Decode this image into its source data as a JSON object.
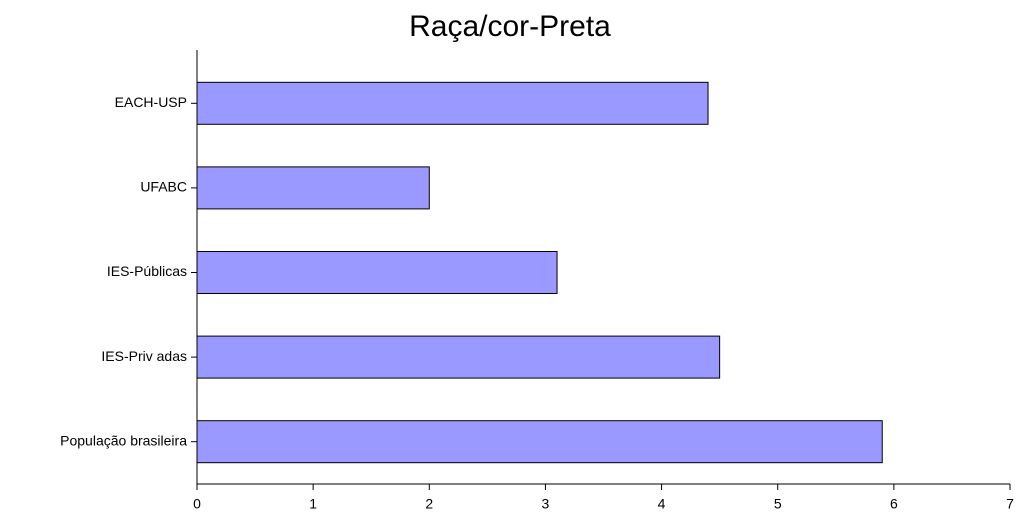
{
  "chart_data": {
    "type": "bar",
    "orientation": "horizontal",
    "title": "Raça/cor-Preta",
    "categories": [
      "EACH-USP",
      "UFABC",
      "IES-Públicas",
      "IES-Priv adas",
      "População brasileira"
    ],
    "values": [
      4.4,
      2.0,
      3.1,
      4.5,
      5.9
    ],
    "color": "#9999ff",
    "xlim": [
      0,
      7
    ],
    "xticks": [
      0,
      1,
      2,
      3,
      4,
      5,
      6,
      7
    ],
    "grid": false
  }
}
